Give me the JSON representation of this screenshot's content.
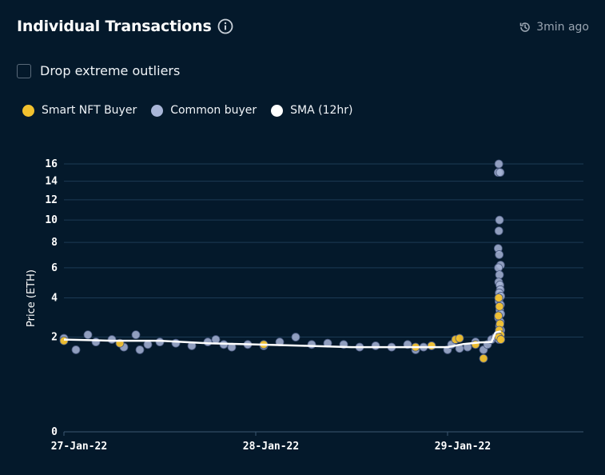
{
  "header": {
    "title": "Individual Transactions",
    "updated": "3min ago"
  },
  "filter": {
    "label": "Drop extreme outliers",
    "checked": false
  },
  "legend": [
    {
      "label": "Smart NFT Buyer",
      "color": "#f2c12e"
    },
    {
      "label": "Common buyer",
      "color": "#a9b6d8"
    },
    {
      "label": "SMA (12hr)",
      "color": "#ffffff"
    }
  ],
  "chart_data": {
    "type": "scatter",
    "ylabel": "Price (ETH)",
    "xlabel": "",
    "x_ticks": [
      "27-Jan-22",
      "28-Jan-22",
      "29-Jan-22"
    ],
    "y_ticks": [
      0,
      2,
      4,
      6,
      8,
      10,
      12,
      14,
      16
    ],
    "y_scale": "sqrt",
    "ylim": [
      0,
      16.5
    ],
    "xlim": [
      "27-Jan-22 00:00",
      "29-Jan-22 07:00"
    ],
    "grid": true,
    "series": [
      {
        "name": "Common buyer",
        "color": "#a9b6d8",
        "points": [
          [
            "27-Jan-22 00:00",
            1.95
          ],
          [
            "27-Jan-22 01:30",
            1.5
          ],
          [
            "27-Jan-22 03:00",
            2.1
          ],
          [
            "27-Jan-22 04:00",
            1.8
          ],
          [
            "27-Jan-22 06:00",
            1.9
          ],
          [
            "27-Jan-22 07:30",
            1.6
          ],
          [
            "27-Jan-22 09:00",
            2.1
          ],
          [
            "27-Jan-22 09:30",
            1.5
          ],
          [
            "27-Jan-22 10:30",
            1.7
          ],
          [
            "27-Jan-22 12:00",
            1.8
          ],
          [
            "27-Jan-22 14:00",
            1.75
          ],
          [
            "27-Jan-22 16:00",
            1.65
          ],
          [
            "27-Jan-22 18:00",
            1.8
          ],
          [
            "27-Jan-22 19:00",
            1.9
          ],
          [
            "27-Jan-22 20:00",
            1.7
          ],
          [
            "27-Jan-22 21:00",
            1.6
          ],
          [
            "27-Jan-22 23:00",
            1.7
          ],
          [
            "28-Jan-22 01:00",
            1.65
          ],
          [
            "28-Jan-22 03:00",
            1.8
          ],
          [
            "28-Jan-22 05:00",
            2.0
          ],
          [
            "28-Jan-22 07:00",
            1.7
          ],
          [
            "28-Jan-22 09:00",
            1.75
          ],
          [
            "28-Jan-22 11:00",
            1.7
          ],
          [
            "28-Jan-22 13:00",
            1.6
          ],
          [
            "28-Jan-22 15:00",
            1.65
          ],
          [
            "28-Jan-22 17:00",
            1.6
          ],
          [
            "28-Jan-22 19:00",
            1.7
          ],
          [
            "28-Jan-22 20:00",
            1.5
          ],
          [
            "28-Jan-22 21:00",
            1.6
          ],
          [
            "28-Jan-22 22:00",
            1.65
          ],
          [
            "29-Jan-22 00:00",
            1.5
          ],
          [
            "29-Jan-22 00:30",
            1.7
          ],
          [
            "29-Jan-22 01:30",
            1.55
          ],
          [
            "29-Jan-22 02:30",
            1.6
          ],
          [
            "29-Jan-22 03:30",
            1.8
          ],
          [
            "29-Jan-22 04:30",
            1.5
          ],
          [
            "29-Jan-22 05:00",
            1.7
          ],
          [
            "29-Jan-22 05:30",
            1.9
          ],
          [
            "29-Jan-22 06:00",
            2.0
          ],
          [
            "29-Jan-22 06:25",
            16.0
          ],
          [
            "29-Jan-22 06:20",
            15.0
          ],
          [
            "29-Jan-22 06:35",
            15.0
          ],
          [
            "29-Jan-22 06:30",
            10.0
          ],
          [
            "29-Jan-22 06:25",
            9.0
          ],
          [
            "29-Jan-22 06:20",
            7.5
          ],
          [
            "29-Jan-22 06:28",
            7.0
          ],
          [
            "29-Jan-22 06:38",
            6.2
          ],
          [
            "29-Jan-22 06:22",
            6.0
          ],
          [
            "29-Jan-22 06:30",
            5.5
          ],
          [
            "29-Jan-22 06:24",
            5.0
          ],
          [
            "29-Jan-22 06:33",
            4.8
          ],
          [
            "29-Jan-22 06:36",
            4.5
          ],
          [
            "29-Jan-22 06:28",
            4.3
          ],
          [
            "29-Jan-22 06:40",
            4.1
          ],
          [
            "29-Jan-22 06:26",
            3.8
          ],
          [
            "29-Jan-22 06:38",
            3.6
          ],
          [
            "29-Jan-22 06:32",
            3.3
          ],
          [
            "29-Jan-22 06:40",
            3.1
          ],
          [
            "29-Jan-22 06:22",
            2.9
          ],
          [
            "29-Jan-22 06:36",
            2.7
          ],
          [
            "29-Jan-22 06:30",
            2.5
          ],
          [
            "29-Jan-22 06:40",
            2.3
          ],
          [
            "29-Jan-22 06:34",
            2.1
          ],
          [
            "29-Jan-22 06:26",
            1.9
          ]
        ]
      },
      {
        "name": "Smart NFT Buyer",
        "color": "#f2c12e",
        "points": [
          [
            "27-Jan-22 00:00",
            1.85
          ],
          [
            "27-Jan-22 07:00",
            1.75
          ],
          [
            "28-Jan-22 01:00",
            1.7
          ],
          [
            "28-Jan-22 20:00",
            1.6
          ],
          [
            "28-Jan-22 22:00",
            1.65
          ],
          [
            "29-Jan-22 01:00",
            1.9
          ],
          [
            "29-Jan-22 01:30",
            1.95
          ],
          [
            "29-Jan-22 03:30",
            1.7
          ],
          [
            "29-Jan-22 04:30",
            1.2
          ],
          [
            "29-Jan-22 06:24",
            4.0
          ],
          [
            "29-Jan-22 06:30",
            3.5
          ],
          [
            "29-Jan-22 06:22",
            3.0
          ],
          [
            "29-Jan-22 06:34",
            2.6
          ],
          [
            "29-Jan-22 06:28",
            2.3
          ],
          [
            "29-Jan-22 06:38",
            2.1
          ],
          [
            "29-Jan-22 06:24",
            2.0
          ],
          [
            "29-Jan-22 06:40",
            1.9
          ]
        ]
      },
      {
        "name": "SMA (12hr)",
        "color": "#ffffff",
        "points": [
          [
            "27-Jan-22 00:00",
            1.9
          ],
          [
            "27-Jan-22 06:00",
            1.85
          ],
          [
            "27-Jan-22 12:00",
            1.85
          ],
          [
            "27-Jan-22 18:00",
            1.75
          ],
          [
            "28-Jan-22 00:00",
            1.7
          ],
          [
            "28-Jan-22 06:00",
            1.65
          ],
          [
            "28-Jan-22 12:00",
            1.6
          ],
          [
            "28-Jan-22 18:00",
            1.6
          ],
          [
            "29-Jan-22 00:00",
            1.6
          ],
          [
            "29-Jan-22 02:00",
            1.72
          ],
          [
            "29-Jan-22 04:00",
            1.78
          ],
          [
            "29-Jan-22 05:30",
            1.8
          ],
          [
            "29-Jan-22 06:00",
            2.2
          ],
          [
            "29-Jan-22 06:40",
            2.25
          ]
        ]
      }
    ]
  }
}
